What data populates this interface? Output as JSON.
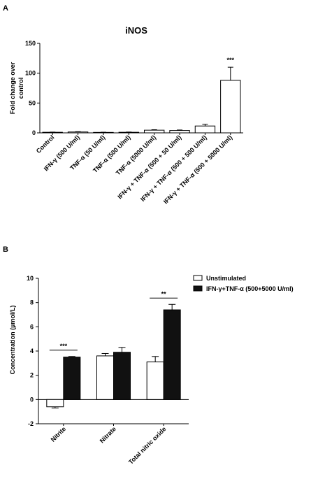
{
  "chart_data": [
    {
      "panel_label": "A",
      "type": "bar",
      "title": "iNOS",
      "ylabel_lines": [
        "Fold change over",
        "control"
      ],
      "ylim": [
        0,
        150
      ],
      "yticks": [
        0,
        50,
        100,
        150
      ],
      "categories": [
        "Control",
        "IFN-γ (500 U/ml)",
        "TNF-α (50 U/ml)",
        "TNF-α (500 U/ml)",
        "TNF-α (5000 U/ml)",
        "IFN-γ + TNF-α (500 + 50 U/ml)",
        "IFN-γ + TNF-α (500 + 500 U/ml)",
        "IFN-γ + TNF-α (500 + 5000 U/ml)"
      ],
      "values": [
        1,
        1.5,
        0.8,
        1,
        4.5,
        4,
        11.5,
        88
      ],
      "errors": [
        0.3,
        0.5,
        0.3,
        0.4,
        0.8,
        0.8,
        3,
        22
      ],
      "significance": [
        {
          "category_index": 7,
          "label": "***"
        }
      ],
      "bar_color": "#ffffff",
      "grid": false
    },
    {
      "panel_label": "B",
      "type": "bar",
      "ylabel": "Concentration (µmol/L)",
      "ylim": [
        -2,
        10
      ],
      "yticks": [
        -2,
        0,
        2,
        4,
        6,
        8,
        10
      ],
      "categories": [
        "Nitrite",
        "Nitrate",
        "Total nitric oxide"
      ],
      "series": [
        {
          "name": "Unstimulated",
          "color": "#ffffff",
          "values": [
            -0.6,
            3.6,
            3.1
          ],
          "errors": [
            0.1,
            0.2,
            0.45
          ]
        },
        {
          "name": "IFN-γ+TNF-α (500+5000 U/ml)",
          "color": "#111111",
          "values": [
            3.5,
            3.9,
            7.4
          ],
          "errors": [
            0.05,
            0.4,
            0.45
          ]
        }
      ],
      "significance": [
        {
          "category_index": 0,
          "label": "***"
        },
        {
          "category_index": 2,
          "label": "**"
        }
      ],
      "legend": "top-right",
      "grid": false
    }
  ]
}
